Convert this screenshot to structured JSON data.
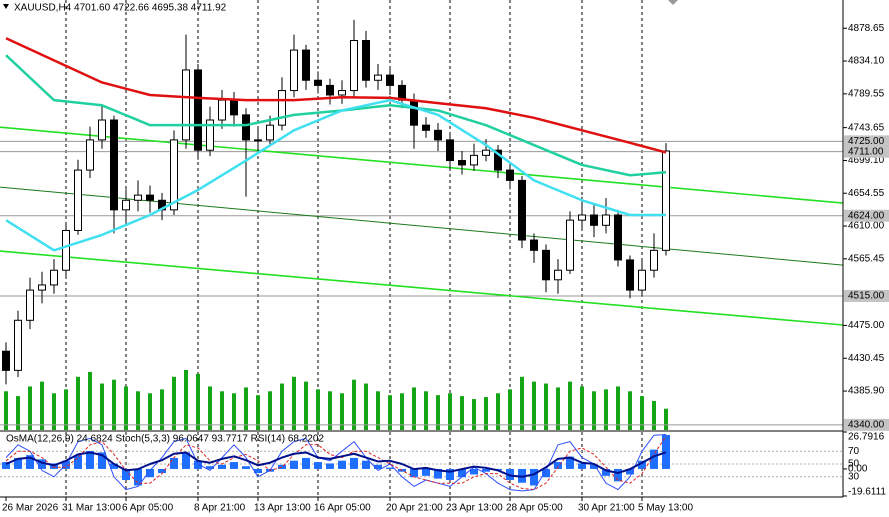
{
  "chart_data": [
    {
      "type": "candlestick",
      "title": "XAUUSD,H4  4701.60 4722.66 4695.38 4711.92",
      "categories": [
        "26 Mar 2026",
        null,
        null,
        null,
        null,
        "31 Mar 13:00",
        null,
        null,
        null,
        null,
        "6 Apr 05:00",
        null,
        null,
        null,
        null,
        null,
        "8 Apr 21:00",
        null,
        null,
        null,
        null,
        "13 Apr 13:00",
        null,
        null,
        null,
        null,
        "16 Apr 05:00",
        null,
        null,
        null,
        null,
        null,
        "20 Apr 21:00",
        null,
        null,
        null,
        null,
        "23 Apr 13:00",
        null,
        null,
        null,
        null,
        "28 Apr 05:00",
        null,
        null,
        null,
        null,
        null,
        "30 Apr 21:00",
        null,
        null,
        null,
        null,
        "5 May 13:00",
        null,
        null
      ],
      "open": [
        4440,
        4414,
        4482,
        4523,
        4530,
        4550,
        4604,
        4686,
        4727,
        4754,
        4632,
        4645,
        4652,
        4645,
        4632,
        4727,
        4822,
        4713,
        4754,
        4781,
        4761,
        4727,
        4727,
        4747,
        4794,
        4849,
        4808,
        4801,
        4788,
        4794,
        4862,
        4808,
        4815,
        4801,
        4781,
        4747,
        4740,
        4727,
        4699,
        4693,
        4706,
        4713,
        4686,
        4672,
        4591,
        4577,
        4537,
        4550,
        4618,
        4625,
        4611,
        4625,
        4564,
        4523,
        4550,
        4577
      ],
      "high": [
        4452,
        4495,
        4540,
        4548,
        4565,
        4615,
        4700,
        4745,
        4775,
        4760,
        4660,
        4672,
        4665,
        4655,
        4740,
        4870,
        4830,
        4772,
        4795,
        4792,
        4770,
        4742,
        4760,
        4812,
        4870,
        4856,
        4820,
        4810,
        4808,
        4890,
        4875,
        4830,
        4825,
        4808,
        4790,
        4758,
        4750,
        4735,
        4712,
        4722,
        4728,
        4720,
        4695,
        4678,
        4600,
        4585,
        4565,
        4630,
        4650,
        4640,
        4648,
        4632,
        4570,
        4565,
        4600,
        4722.66
      ],
      "low": [
        4395,
        4405,
        4470,
        4505,
        4518,
        4542,
        4598,
        4675,
        4715,
        4600,
        4615,
        4630,
        4628,
        4618,
        4625,
        4715,
        4700,
        4705,
        4742,
        4745,
        4650,
        4712,
        4718,
        4740,
        4785,
        4795,
        4790,
        4775,
        4776,
        4785,
        4798,
        4795,
        4788,
        4770,
        4715,
        4730,
        4712,
        4685,
        4680,
        4685,
        4698,
        4675,
        4660,
        4580,
        4560,
        4520,
        4518,
        4545,
        4605,
        4595,
        4600,
        4555,
        4512,
        4515,
        4540,
        4570
      ],
      "close": [
        4414,
        4482,
        4523,
        4530,
        4550,
        4604,
        4686,
        4727,
        4754,
        4632,
        4645,
        4652,
        4645,
        4632,
        4727,
        4822,
        4713,
        4754,
        4781,
        4761,
        4727,
        4727,
        4747,
        4794,
        4849,
        4808,
        4801,
        4788,
        4794,
        4862,
        4808,
        4815,
        4801,
        4781,
        4747,
        4740,
        4727,
        4699,
        4693,
        4706,
        4713,
        4686,
        4672,
        4591,
        4577,
        4537,
        4550,
        4618,
        4625,
        4611,
        4625,
        4564,
        4523,
        4550,
        4577,
        4711.92
      ],
      "volume": [
        40,
        35,
        45,
        50,
        38,
        42,
        55,
        60,
        48,
        52,
        45,
        40,
        38,
        42,
        55,
        62,
        58,
        45,
        40,
        38,
        44,
        36,
        40,
        48,
        55,
        50,
        42,
        40,
        38,
        52,
        48,
        40,
        36,
        38,
        44,
        40,
        36,
        38,
        35,
        32,
        34,
        38,
        42,
        55,
        50,
        48,
        44,
        50,
        45,
        40,
        42,
        45,
        40,
        35,
        30,
        22
      ],
      "volume_color": "#16a516",
      "up_color": "#ffffff",
      "down_color": "#000000",
      "candle_outline": "#000000",
      "series": [
        {
          "color": "#e01010",
          "width": 2.5,
          "x": [
            0,
            4,
            8,
            12,
            16,
            20,
            24,
            28,
            32,
            36,
            40,
            44,
            48,
            52,
            55
          ],
          "values": [
            4865,
            4835,
            4805,
            4788,
            4784,
            4781,
            4781,
            4785,
            4784,
            4777,
            4770,
            4757,
            4740,
            4723,
            4710
          ]
        },
        {
          "color": "#20d0a0",
          "width": 2.5,
          "x": [
            0,
            4,
            8,
            12,
            16,
            20,
            24,
            28,
            32,
            36,
            40,
            44,
            48,
            52,
            55
          ],
          "values": [
            4842,
            4781,
            4774,
            4747,
            4747,
            4747,
            4761,
            4767,
            4774,
            4767,
            4747,
            4720,
            4693,
            4679,
            4683
          ]
        },
        {
          "color": "#40e0f0",
          "width": 2.5,
          "x": [
            0,
            4,
            8,
            12,
            16,
            20,
            24,
            28,
            32,
            36,
            40,
            44,
            48,
            52,
            55
          ],
          "values": [
            4618,
            4577,
            4598,
            4625,
            4659,
            4699,
            4740,
            4767,
            4781,
            4761,
            4720,
            4672,
            4645,
            4625,
            4625
          ]
        }
      ],
      "trendlines": [
        {
          "color": "#22e022",
          "width": 1.6,
          "x": [
            -0.5,
            69.75
          ],
          "values": [
            4744.3,
            4641.2
          ]
        },
        {
          "color": "#1a7a1a",
          "width": 1,
          "x": [
            -0.5,
            69.75
          ],
          "values": [
            4662.9,
            4557.0
          ]
        },
        {
          "color": "#22e022",
          "width": 1.6,
          "x": [
            -0.5,
            69.75
          ],
          "values": [
            4576.0,
            4475.6
          ]
        }
      ],
      "levels": [
        {
          "value": 4725,
          "label": "4725.00"
        },
        {
          "value": 4711,
          "label": "4711.00"
        },
        {
          "value": 4624,
          "label": "4624.00"
        },
        {
          "value": 4515,
          "label": "4515.00"
        },
        {
          "value": 4340,
          "label": "4340.00"
        }
      ],
      "ylim": [
        4333,
        4917
      ],
      "yticks": [
        4878.65,
        {
          "value": 4834.1,
          "label": "4834.10"
        },
        4789.55,
        4743.65,
        {
          "value": 4699.1,
          "label": "4699.10"
        },
        4654.55,
        {
          "value": 4610,
          "label": "4610.00"
        },
        4565.45,
        {
          "value": 4475,
          "label": "4475.00"
        },
        4430.45,
        {
          "value": 4385.9,
          "label": "4385.90"
        }
      ],
      "grid": true
    },
    {
      "type": "indicator",
      "title": "OsMA(12,26,9) 24.6824  Stoch(5,3,3) 96.0647 93.7717  RSI(14) 68.2202",
      "ylim": [
        -19.6111,
        26.7916
      ],
      "yticks": [
        26.7916,
        {
          "value": 0,
          "label": "0.00"
        },
        -19.6111
      ],
      "y2lim": [
        0,
        100
      ],
      "y2ticks": [
        70,
        50,
        30
      ],
      "series": [
        {
          "style": "bar",
          "color": "#1e6fff",
          "values": [
            5,
            8,
            10,
            7,
            4,
            6,
            10,
            13,
            12,
            4,
            -8,
            -12,
            -6,
            -3,
            8,
            12,
            6,
            2,
            3,
            5,
            2,
            -3,
            -2,
            3,
            6,
            8,
            5,
            4,
            6,
            8,
            6,
            3,
            1,
            -2,
            -6,
            -5,
            -7,
            -8,
            -6,
            -4,
            -2,
            -1,
            -8,
            -10,
            -12,
            -6,
            5,
            9,
            4,
            3,
            -5,
            -9,
            -4,
            6,
            14,
            24.6824
          ]
        },
        {
          "style": "line",
          "axis": "y2",
          "color": "#3050ff",
          "width": 1,
          "values": [
            60,
            80,
            70,
            40,
            30,
            50,
            85,
            90,
            80,
            30,
            10,
            15,
            40,
            60,
            85,
            90,
            50,
            40,
            60,
            80,
            60,
            30,
            40,
            70,
            85,
            90,
            60,
            55,
            70,
            85,
            60,
            40,
            50,
            30,
            15,
            25,
            20,
            15,
            30,
            45,
            35,
            20,
            10,
            8,
            10,
            40,
            80,
            85,
            60,
            50,
            20,
            10,
            30,
            70,
            95,
            96.0647
          ]
        },
        {
          "style": "line",
          "axis": "y2",
          "color": "#e02020",
          "width": 1,
          "dash": true,
          "values": [
            55,
            70,
            70,
            60,
            45,
            45,
            60,
            80,
            85,
            65,
            40,
            20,
            20,
            35,
            60,
            80,
            75,
            55,
            50,
            60,
            65,
            55,
            40,
            45,
            65,
            80,
            80,
            65,
            60,
            70,
            70,
            60,
            50,
            40,
            30,
            25,
            20,
            20,
            20,
            30,
            35,
            35,
            20,
            12,
            10,
            20,
            45,
            70,
            75,
            65,
            45,
            25,
            20,
            35,
            65,
            93.7717
          ]
        },
        {
          "style": "line",
          "axis": "y2",
          "color": "#00108a",
          "width": 2,
          "values": [
            50,
            58,
            60,
            52,
            48,
            55,
            65,
            68,
            64,
            50,
            40,
            42,
            50,
            56,
            66,
            68,
            55,
            52,
            58,
            62,
            56,
            48,
            52,
            60,
            66,
            68,
            60,
            58,
            62,
            66,
            60,
            54,
            55,
            50,
            42,
            44,
            40,
            38,
            42,
            46,
            44,
            40,
            32,
            30,
            34,
            45,
            58,
            60,
            52,
            50,
            40,
            36,
            42,
            52,
            62,
            68.2202
          ]
        }
      ]
    }
  ]
}
